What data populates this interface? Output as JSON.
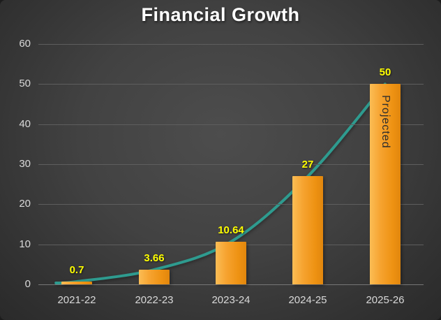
{
  "chart_data": {
    "type": "bar",
    "title": "Financial Growth",
    "categories": [
      "2021-22",
      "2022-23",
      "2023-24",
      "2024-25",
      "2025-26"
    ],
    "values": [
      0.7,
      3.66,
      10.64,
      27,
      50
    ],
    "value_labels": [
      "0.7",
      "3.66",
      "10.64",
      "27",
      "50"
    ],
    "series": [
      {
        "name": "values-bars",
        "type": "bar",
        "values": [
          0.7,
          3.66,
          10.64,
          27,
          50
        ]
      },
      {
        "name": "trend-line",
        "type": "line",
        "values": [
          0.7,
          3.66,
          10.64,
          27,
          50
        ]
      }
    ],
    "annotation": {
      "index": 4,
      "text": "Projected"
    },
    "ylim": [
      0,
      60
    ],
    "yticks": [
      0,
      10,
      20,
      30,
      40,
      50,
      60
    ],
    "grid": true,
    "legend": "none",
    "colors": {
      "bar": "#F29A1E",
      "line": "#2E9B8F",
      "value_label": "#FFFF00",
      "title": "#FFFFFF",
      "axis_text": "#D9D9D9",
      "background": "#3F3F3F"
    }
  }
}
